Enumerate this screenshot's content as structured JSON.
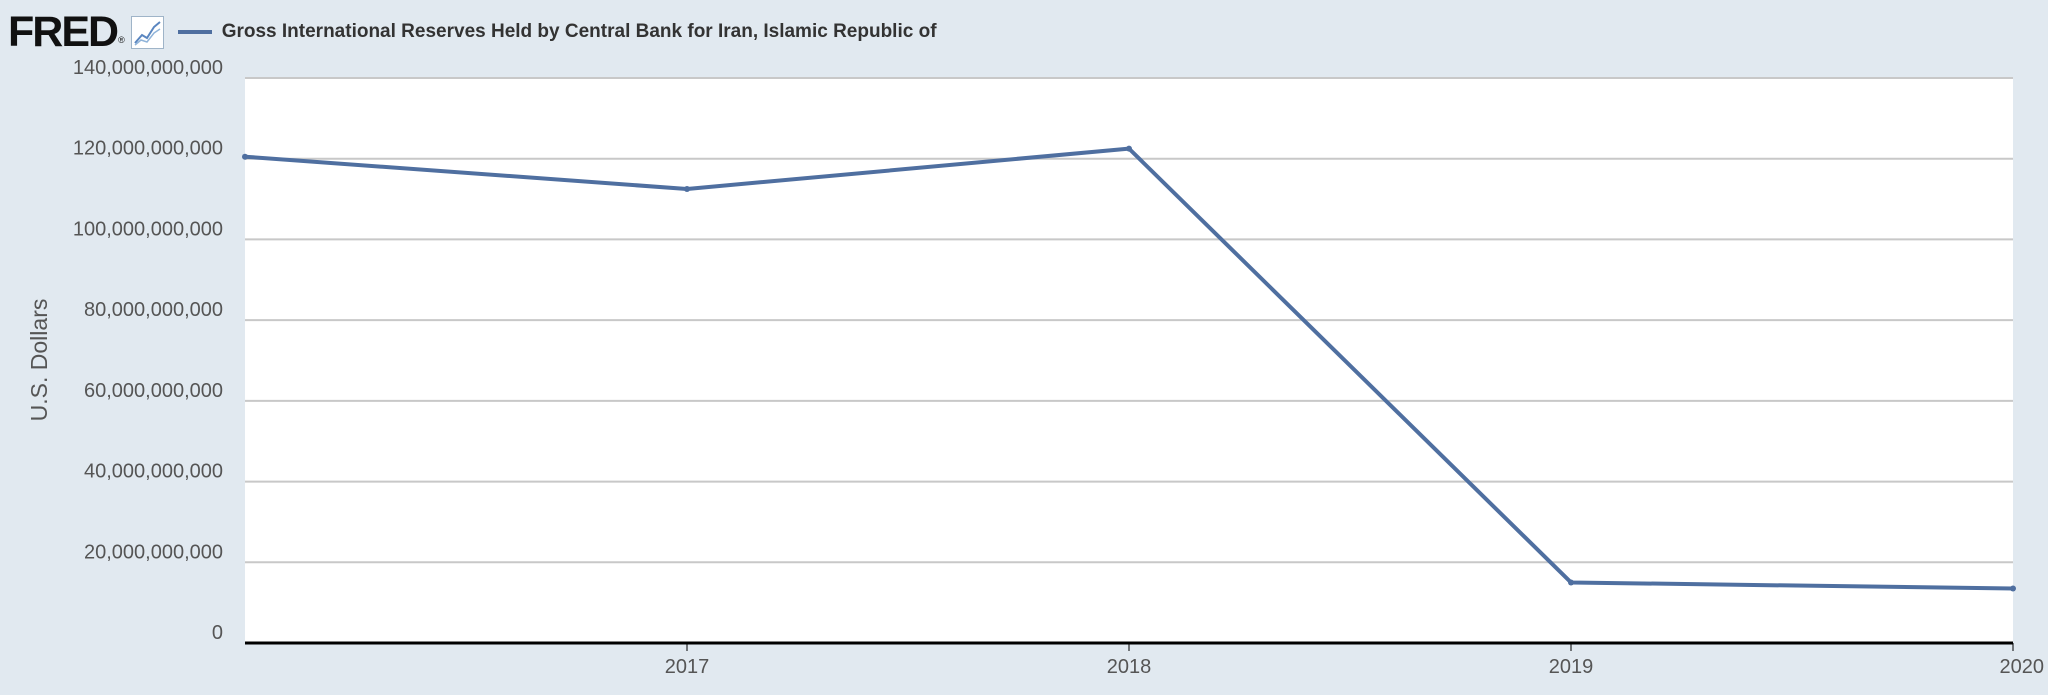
{
  "header": {
    "logo": "FRED",
    "logo_mark": "®",
    "chart_icon": "line-chart-icon"
  },
  "colors": {
    "background": "#e1e9f0",
    "plot_background": "#ffffff",
    "series": "#4f6fa0",
    "grid": "#c8c8c8",
    "axis": "#000000",
    "text": "#555555"
  },
  "chart_data": {
    "type": "line",
    "title": "",
    "xlabel": "",
    "ylabel": "U.S. Dollars",
    "x": [
      "2016",
      "2017",
      "2018",
      "2019",
      "2020"
    ],
    "series": [
      {
        "name": "Gross International Reserves Held by Central Bank for Iran, Islamic Republic of",
        "values": [
          120500000000,
          112500000000,
          122500000000,
          15000000000,
          13500000000
        ]
      }
    ],
    "ylim": [
      0,
      140000000000
    ],
    "yticks": [
      "0",
      "20,000,000,000",
      "40,000,000,000",
      "60,000,000,000",
      "80,000,000,000",
      "100,000,000,000",
      "120,000,000,000",
      "140,000,000,000"
    ],
    "ytick_values": [
      0,
      20000000000,
      40000000000,
      60000000000,
      80000000000,
      100000000000,
      120000000000,
      140000000000
    ],
    "xticks": [
      "2017",
      "2018",
      "2019",
      "2020"
    ],
    "xlim": [
      "2016",
      "2020"
    ],
    "grid": true,
    "legend": "top-left"
  }
}
